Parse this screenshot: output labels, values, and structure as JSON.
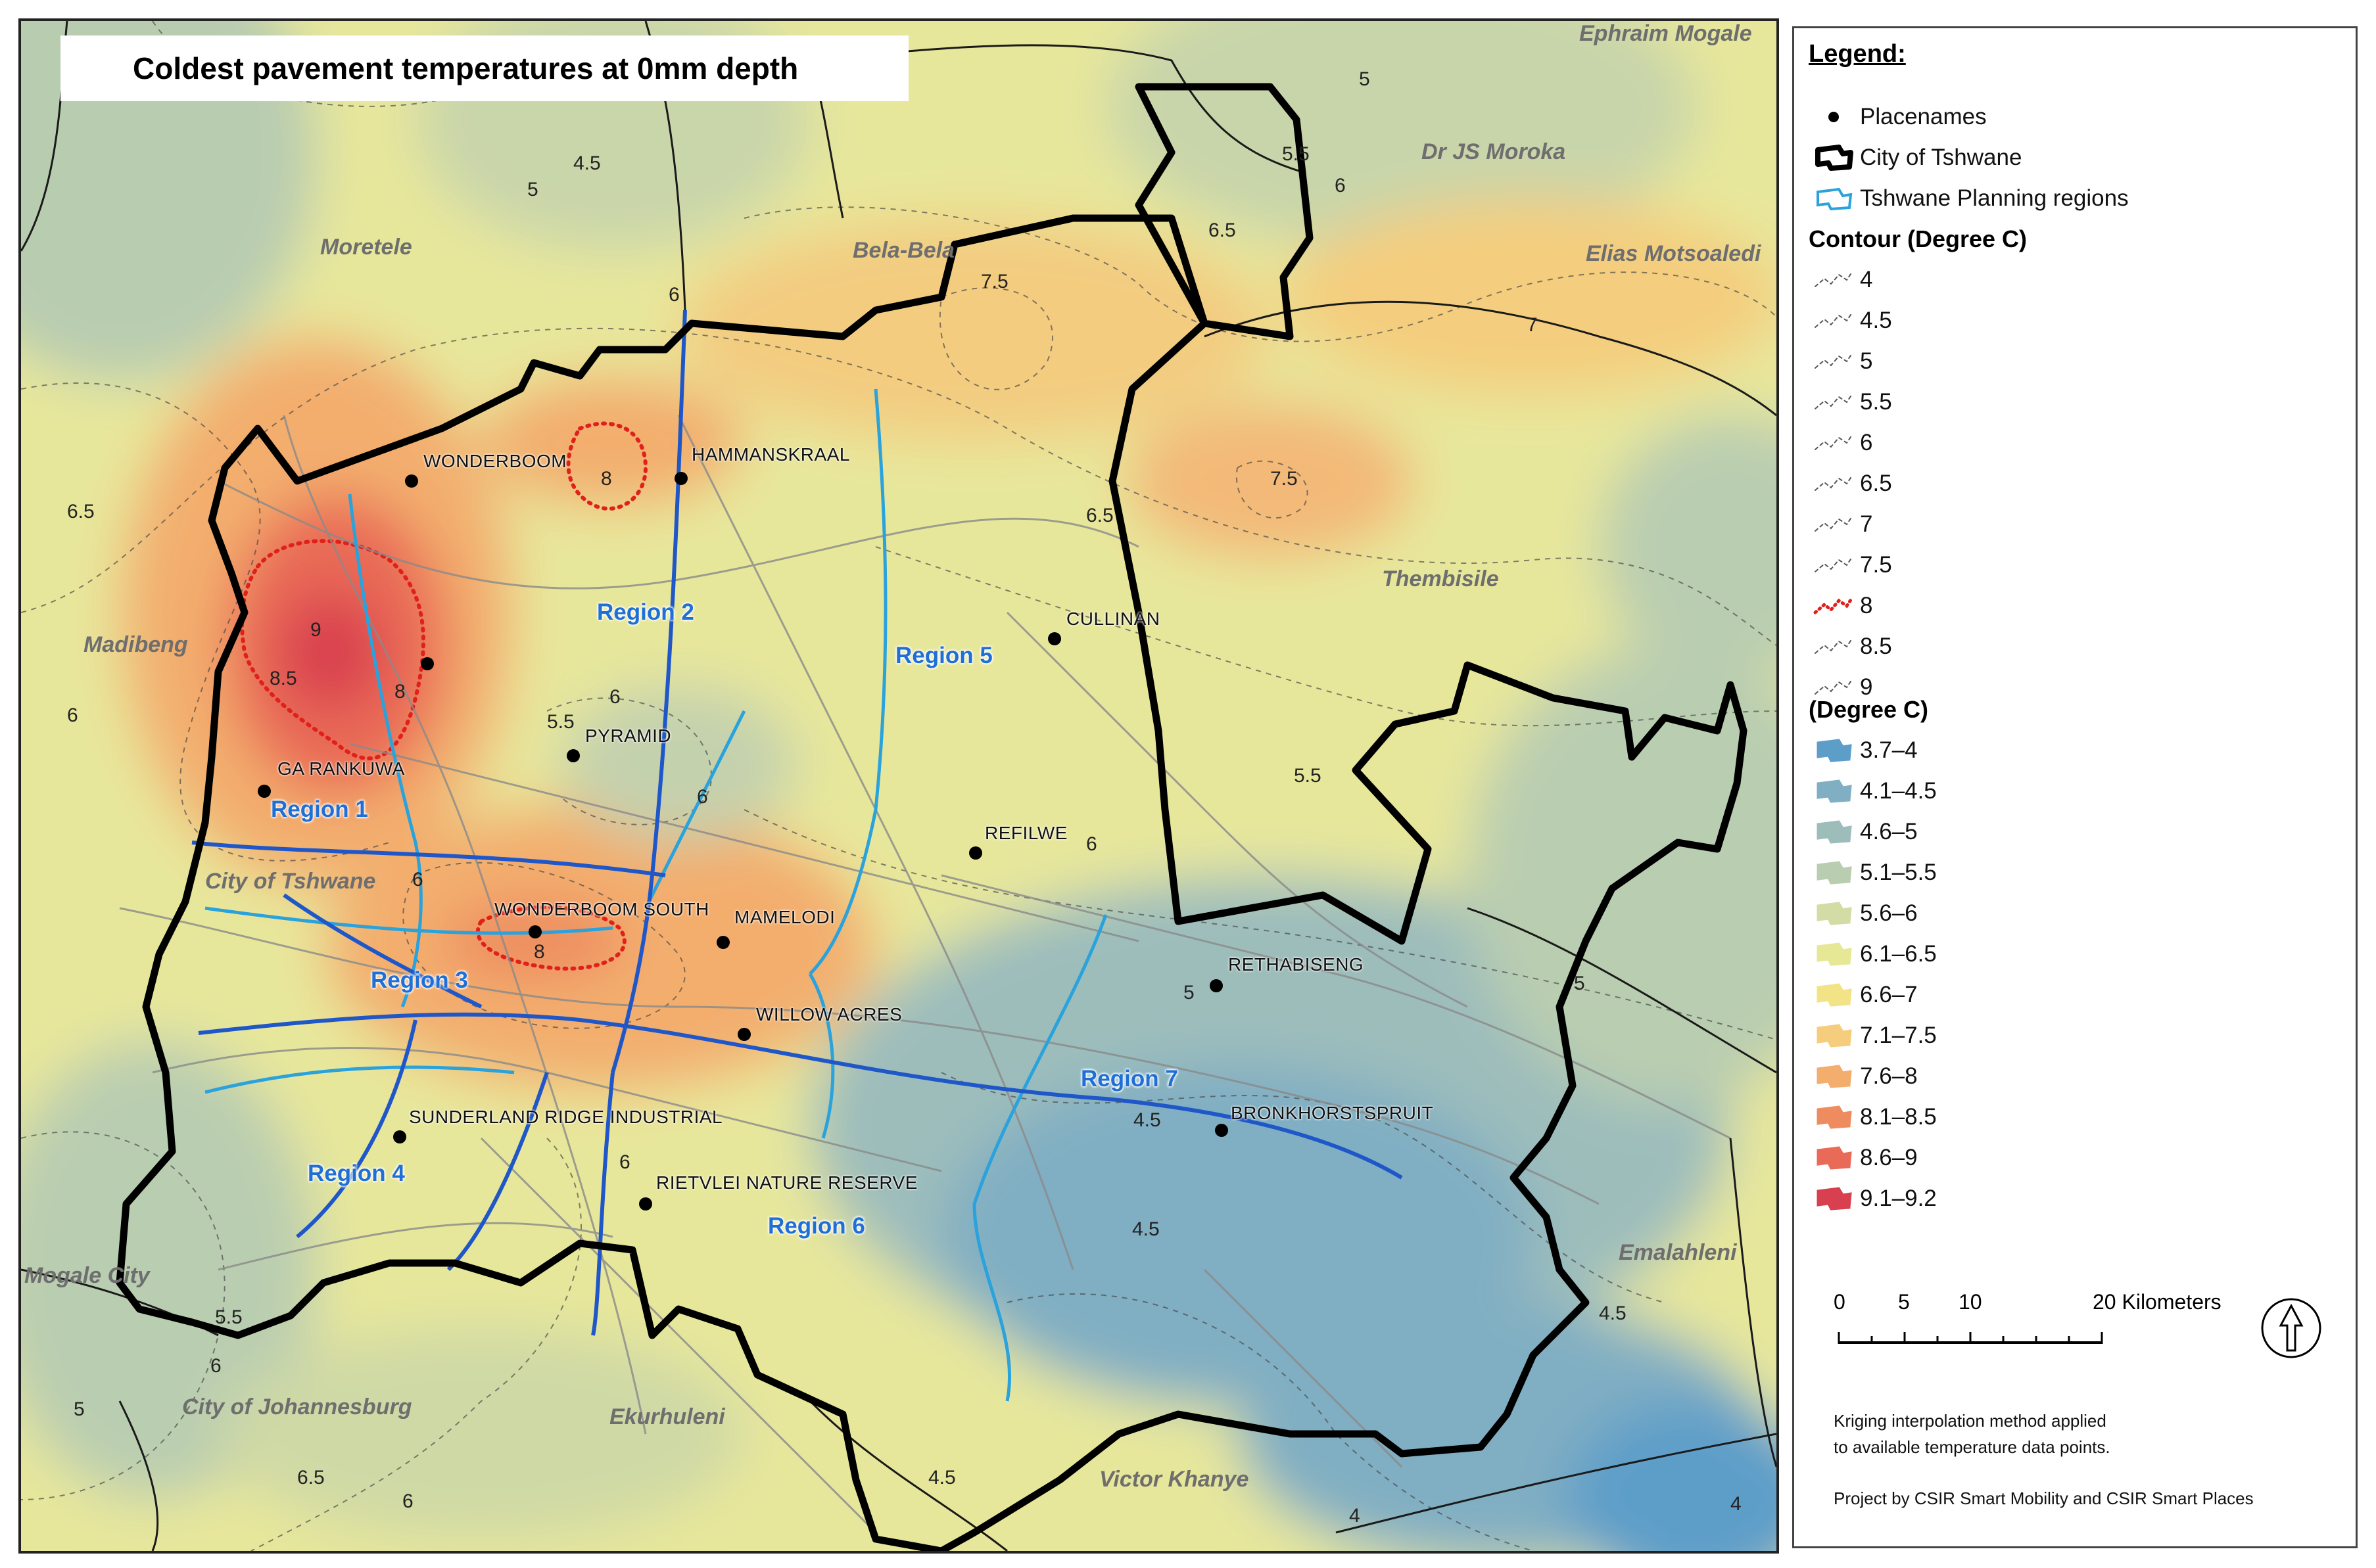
{
  "map": {
    "title": "Coldest pavement temperatures at 0mm depth",
    "areas": [
      "Ephraim Mogale",
      "Dr JS Moroka",
      "Elias Motsoaledi",
      "Moretele",
      "Bela-Bela",
      "Madibeng",
      "Thembisile",
      "City of Tshwane",
      "Mogale City",
      "City of Johannesburg",
      "Ekurhuleni",
      "Victor Khanye",
      "Emalahleni"
    ],
    "places": [
      "WONDERBOOM",
      "HAMMANSKRAAL",
      "CULLINAN",
      "PYRAMID",
      "GA RANKUWA",
      "REFILWE",
      "WONDERBOOM SOUTH",
      "MAMELODI",
      "RETHABISENG",
      "WILLOW ACRES",
      "BRONKHORSTSPRUIT",
      "SUNDERLAND RIDGE INDUSTRIAL",
      "RIETVLEI NATURE RESERVE"
    ],
    "regions": [
      "Region 1",
      "Region 2",
      "Region 3",
      "Region 4",
      "Region 5",
      "Region 6",
      "Region 7"
    ],
    "contour_labels": [
      "5",
      "4.5",
      "5",
      "6",
      "5.5",
      "6",
      "6.5",
      "7",
      "7.5",
      "8",
      "7.5",
      "6.5",
      "6.5",
      "9",
      "8.5",
      "8",
      "6",
      "5.5",
      "6",
      "6",
      "6",
      "8",
      "5.5",
      "5",
      "4.5",
      "4.5",
      "6",
      "5",
      "5.5",
      "6",
      "5",
      "6.5",
      "6",
      "4.5",
      "4",
      "4",
      "4.5",
      "6"
    ]
  },
  "legend": {
    "title": "Legend:",
    "placenames": "Placenames",
    "city": "City of Tshwane",
    "planning": "Tshwane Planning regions",
    "contour_heading": "Contour (Degree C)",
    "contours": [
      "4",
      "4.5",
      "5",
      "5.5",
      "6",
      "6.5",
      "7",
      "7.5",
      "8",
      "8.5",
      "9"
    ],
    "fill_heading": "(Degree C)",
    "classes": [
      {
        "label": "3.7–4",
        "color": "#5d9ec9"
      },
      {
        "label": "4.1–4.5",
        "color": "#80aec3"
      },
      {
        "label": "4.6–5",
        "color": "#9dbdbb"
      },
      {
        "label": "5.1–5.5",
        "color": "#b9cdb0"
      },
      {
        "label": "5.6–6",
        "color": "#d2dca4"
      },
      {
        "label": "6.1–6.5",
        "color": "#e6e896"
      },
      {
        "label": "6.6–7",
        "color": "#f3e387"
      },
      {
        "label": "7.1–7.5",
        "color": "#f6cd7c"
      },
      {
        "label": "7.6–8",
        "color": "#f3ae6e"
      },
      {
        "label": "8.1–8.5",
        "color": "#ee8c60"
      },
      {
        "label": "8.6–9",
        "color": "#e96a57"
      },
      {
        "label": "9.1–9.2",
        "color": "#d9404f"
      }
    ],
    "scale_labels": [
      "0",
      "5",
      "10",
      "20 Kilometers"
    ],
    "note1": "Kriging interpolation method applied",
    "note2": "to available temperature data points.",
    "credit": "Project by CSIR Smart Mobility and CSIR Smart Places"
  }
}
